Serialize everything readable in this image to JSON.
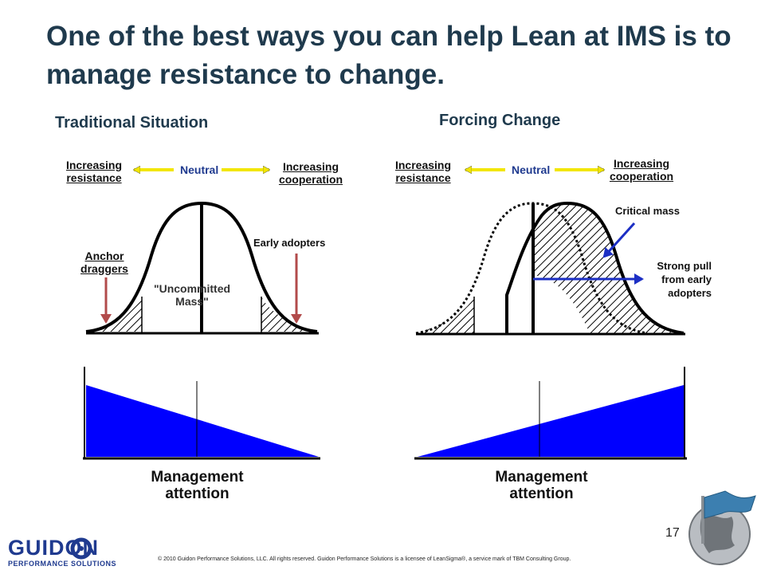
{
  "slide": {
    "title": "One of the best ways you can help Lean at IMS is to manage resistance to change.",
    "page_number": "17",
    "footer": "© 2010 Guidon Performance Solutions, LLC. All rights reserved. Guidon Performance Solutions is a licensee of LeanSigma®, a service mark of TBM Consulting Group."
  },
  "left_panel": {
    "heading": "Traditional Situation",
    "increasing_resistance_1": "Increasing",
    "increasing_resistance_2": "resistance",
    "neutral": "Neutral",
    "increasing_cooperation_1": "Increasing",
    "increasing_cooperation_2": "cooperation",
    "anchor_1": "Anchor",
    "anchor_2": "draggers",
    "uncommitted_1": "\"Uncommitted",
    "uncommitted_2": "Mass\"",
    "early_adopters": "Early adopters",
    "mgmt_1": "Management",
    "mgmt_2": "attention"
  },
  "right_panel": {
    "heading": "Forcing Change",
    "increasing_resistance_1": "Increasing",
    "increasing_resistance_2": "resistance",
    "neutral": "Neutral",
    "increasing_cooperation_1": "Increasing",
    "increasing_cooperation_2": "cooperation",
    "critical_mass": "Critical mass",
    "strong_pull_1": "Strong pull",
    "strong_pull_2": "from early",
    "strong_pull_3": "adopters",
    "mgmt_1": "Management",
    "mgmt_2": "attention"
  },
  "logo": {
    "brand": "GUIDON",
    "tagline": "PERFORMANCE SOLUTIONS"
  },
  "colors": {
    "title": "#1f3a4d",
    "attention_fill": "#0000ff",
    "arrow_red": "#b24b4b",
    "arrow_blue": "#1c2fc4",
    "arrow_yellow": "#f2e600"
  }
}
